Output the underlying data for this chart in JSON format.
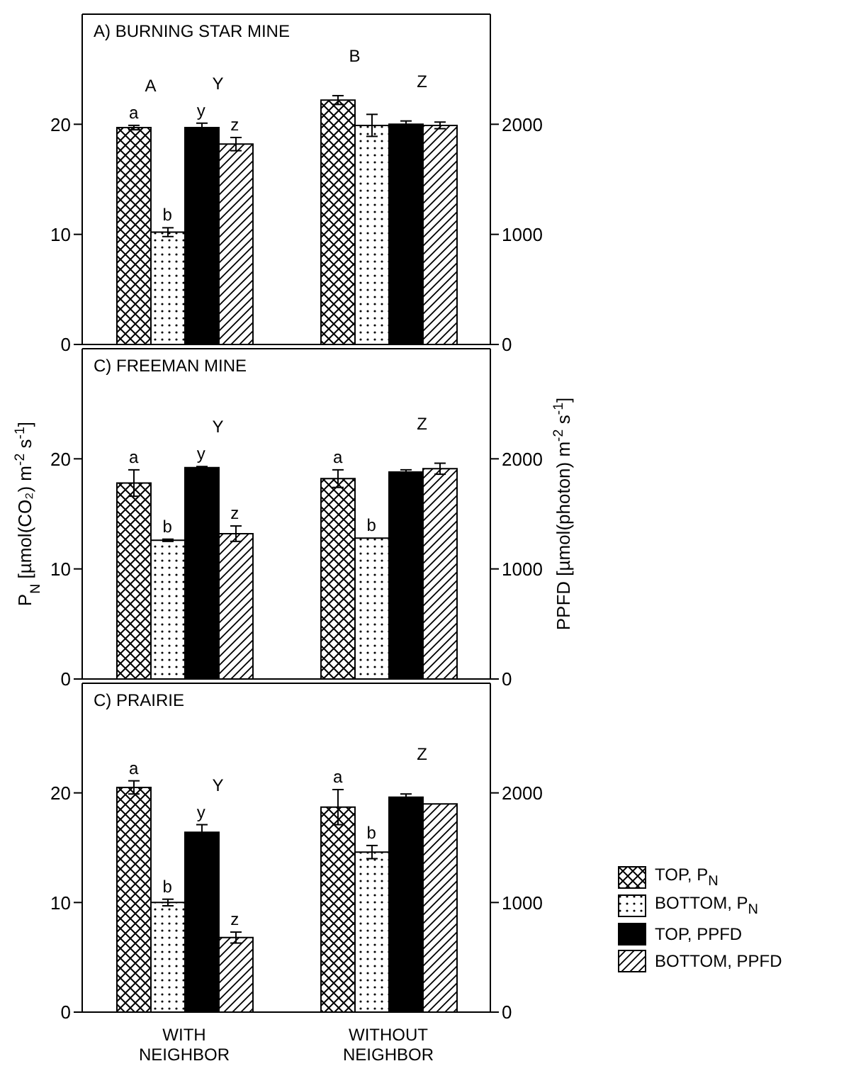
{
  "chart_data": [
    {
      "type": "bar",
      "title": "A) BURNING STAR MINE",
      "categories": [
        null,
        null
      ],
      "tick_labels": "y",
      "legend": false,
      "ylim": [
        0,
        30
      ],
      "yticks": [
        0,
        10,
        20
      ],
      "y2lim": [
        0,
        3000
      ],
      "y2ticks": [
        0,
        1000,
        2000
      ],
      "series": [
        {
          "color": "#000000",
          "values": [
            19.7,
            22.2
          ],
          "errors": [
            0.2,
            0.4
          ]
        },
        {
          "color": "#000000",
          "values": [
            10.2,
            19.9
          ],
          "errors": [
            0.4,
            1.0
          ]
        },
        {
          "color": "#000000",
          "axis": "y2",
          "values": [
            1970,
            2000
          ],
          "errors": [
            40,
            30
          ]
        },
        {
          "color": "#000000",
          "axis": "y2",
          "values": [
            1820,
            1990
          ],
          "errors": [
            60,
            30
          ]
        }
      ],
      "annotations": [
        "a",
        "A",
        "b",
        "y",
        "Y",
        "z",
        "B",
        "Z"
      ]
    },
    {
      "type": "bar",
      "title": "C) FREEMAN MINE",
      "categories": [
        null,
        null
      ],
      "tick_labels": "y",
      "legend": false,
      "ylabel": "P$_{N}$ [µmol(CO₂) m$^{-2}$ s$^{-1}$]",
      "y2label": "PPFD [µmol(photon) m$^{-2}$ s$^{-1}$]",
      "ylim": [
        0,
        30
      ],
      "yticks": [
        0,
        10,
        20
      ],
      "y2lim": [
        0,
        3000
      ],
      "y2ticks": [
        0,
        1000,
        2000
      ],
      "series": [
        {
          "color": "#000000",
          "values": [
            17.8,
            18.2
          ],
          "errors": [
            1.2,
            0.8
          ]
        },
        {
          "color": "#000000",
          "values": [
            12.6,
            12.8
          ],
          "errors": [
            0.1,
            null
          ]
        },
        {
          "color": "#000000",
          "axis": "y2",
          "values": [
            1920,
            1880
          ],
          "errors": [
            10,
            20
          ]
        },
        {
          "color": "#000000",
          "axis": "y2",
          "values": [
            1320,
            1910
          ],
          "errors": [
            70,
            50
          ]
        }
      ],
      "annotations": [
        "a",
        "b",
        "y",
        "Y",
        "z",
        "a",
        "b",
        "Z"
      ]
    },
    {
      "type": "bar",
      "title": "C) PRAIRIE",
      "categories": [
        "WITH NEIGHBOR",
        "WITHOUT NEIGHBOR"
      ],
      "legend": "right",
      "ylim": [
        0,
        30
      ],
      "yticks": [
        0,
        10,
        20
      ],
      "y2lim": [
        0,
        3000
      ],
      "y2ticks": [
        0,
        1000,
        2000
      ],
      "series": [
        {
          "name": "TOP, P$_{N}$",
          "color": "#000000",
          "values": [
            20.5,
            18.7
          ],
          "errors": [
            0.6,
            1.6
          ]
        },
        {
          "name": "BOTTOM, P$_{N}$",
          "color": "#000000",
          "values": [
            10.0,
            14.6
          ],
          "errors": [
            0.3,
            0.6
          ]
        },
        {
          "name": "TOP, PPFD",
          "color": "#000000",
          "axis": "y2",
          "values": [
            1640,
            1960
          ],
          "errors": [
            70,
            30
          ]
        },
        {
          "name": "BOTTOM, PPFD",
          "color": "#000000",
          "axis": "y2",
          "values": [
            680,
            1900
          ],
          "errors": [
            50,
            null
          ]
        }
      ],
      "annotations": [
        "a",
        "b",
        "y",
        "Y",
        "z",
        "a",
        "b",
        "Z"
      ]
    }
  ]
}
